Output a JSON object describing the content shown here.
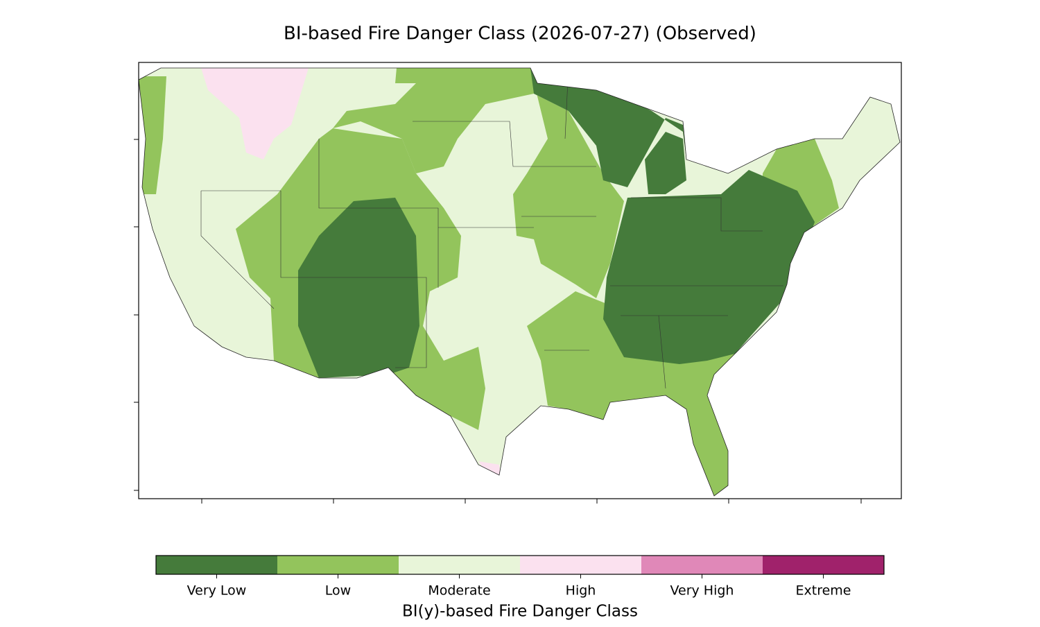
{
  "title": "BI-based Fire Danger Class (2026-07-27) (Observed)",
  "colorbar": {
    "label": "BI(y)-based Fire Danger Class",
    "classes": [
      {
        "name": "Very Low",
        "color": "#457b3b"
      },
      {
        "name": "Low",
        "color": "#93c45c"
      },
      {
        "name": "Moderate",
        "color": "#e8f5d9"
      },
      {
        "name": "High",
        "color": "#fbe1ef"
      },
      {
        "name": "Very High",
        "color": "#e088b8"
      },
      {
        "name": "Extreme",
        "color": "#a0226b"
      }
    ]
  }
}
